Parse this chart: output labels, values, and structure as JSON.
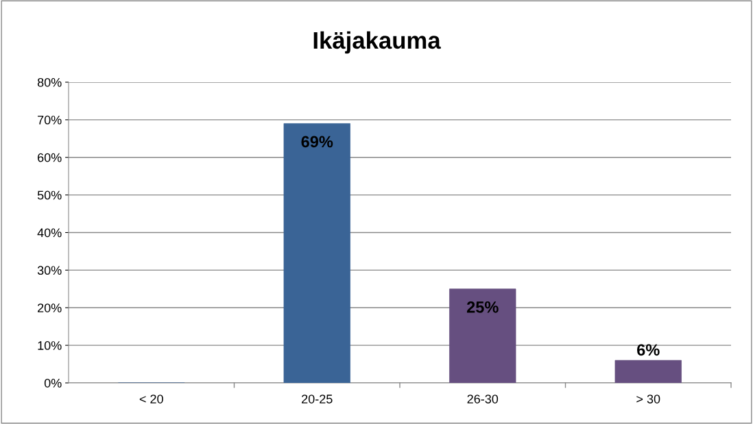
{
  "chart_data": {
    "type": "bar",
    "title": "Ikäjakauma",
    "categories": [
      "< 20",
      "20-25",
      "26-30",
      "> 30"
    ],
    "values": [
      0,
      69,
      25,
      6
    ],
    "colors": [
      "#3a6496",
      "#3a6496",
      "#664f80",
      "#664f80"
    ],
    "value_labels": [
      null,
      "69%",
      "25%",
      "6%"
    ],
    "ylim": [
      0,
      80
    ],
    "yticks": [
      {
        "value": 0,
        "label": "0%"
      },
      {
        "value": 10,
        "label": "10%"
      },
      {
        "value": 20,
        "label": "20%"
      },
      {
        "value": 30,
        "label": "30%"
      },
      {
        "value": 40,
        "label": "40%"
      },
      {
        "value": 50,
        "label": "50%"
      },
      {
        "value": 60,
        "label": "60%"
      },
      {
        "value": 70,
        "label": "70%"
      },
      {
        "value": 80,
        "label": "80%"
      }
    ],
    "grid": "y",
    "legend": false
  }
}
